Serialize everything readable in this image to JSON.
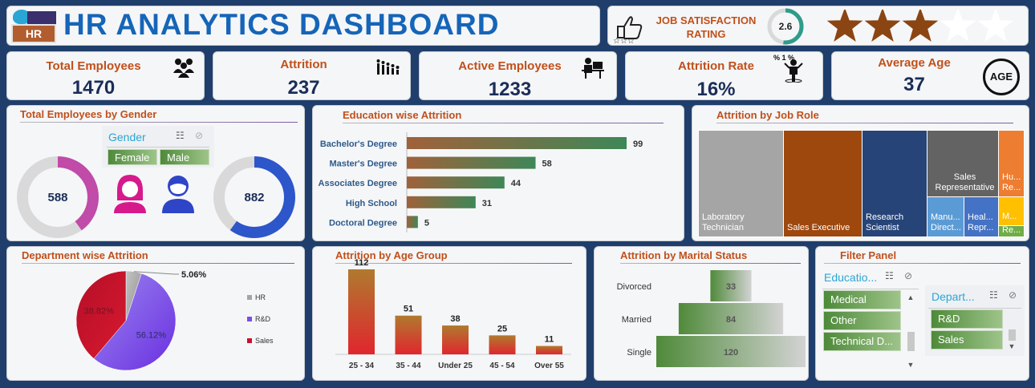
{
  "header": {
    "title": "HR ANALYTICS DASHBOARD",
    "logo_text": "HR"
  },
  "satisfaction": {
    "label_line1": "JOB SATISFACTION",
    "label_line2": "RATING",
    "value": "2.6",
    "stars_filled": 2.6,
    "stars_total": 5
  },
  "kpis": [
    {
      "label": "Total Employees",
      "value": "1470",
      "icon": "people-group-icon"
    },
    {
      "label": "Attrition",
      "value": "237",
      "icon": "people-leaving-icon"
    },
    {
      "label": "Active Employees",
      "value": "1233",
      "icon": "employee-desk-icon"
    },
    {
      "label": "Attrition Rate",
      "value": "16%",
      "icon": "person-percent-icon",
      "icon_text": "% 1 %"
    },
    {
      "label": "Average Age",
      "value": "37",
      "icon": "age-icon",
      "icon_text": "AGE"
    }
  ],
  "gender": {
    "title": "Total Employees by Gender",
    "slicer_title": "Gender",
    "options": [
      "Female",
      "Male"
    ],
    "female_count": "588",
    "male_count": "882",
    "female_share": 0.4,
    "male_share": 0.6
  },
  "education": {
    "title": "Education wise Attrition",
    "categories": [
      "Bachelor's Degree",
      "Master's Degree",
      "Associates Degree",
      "High School",
      "Doctoral Degree"
    ],
    "values": [
      99,
      58,
      44,
      31,
      5
    ]
  },
  "job_role": {
    "title": "Attrition by Job Role",
    "tiles": [
      {
        "label": "Laboratory Technician",
        "color": "#a5a5a5"
      },
      {
        "label": "Sales Executive",
        "color": "#9e480e"
      },
      {
        "label": "Research Scientist",
        "color": "#264478"
      },
      {
        "label": "Sales Representative",
        "color": "#636363"
      },
      {
        "label": "Hu... Re...",
        "color": "#ed7d31"
      },
      {
        "label": "Manu... Direct...",
        "color": "#5b9bd5"
      },
      {
        "label": "Heal... Repr...",
        "color": "#4472c4"
      },
      {
        "label": "M...",
        "color": "#ffc000"
      },
      {
        "label": "Re...",
        "color": "#70ad47"
      }
    ]
  },
  "department": {
    "title": "Department wise Attrition",
    "labels": [
      "HR",
      "R&D",
      "Sales"
    ],
    "values": [
      5.06,
      56.12,
      38.82
    ],
    "value_labels": [
      "5.06%",
      "56.12%",
      "38.82%"
    ],
    "colors": [
      "#a5a5a5",
      "#7b4fe0",
      "#c8102e"
    ]
  },
  "age": {
    "title": "Attrition by Age Group",
    "categories": [
      "25 - 34",
      "35 - 44",
      "Under 25",
      "45 - 54",
      "Over 55"
    ],
    "values": [
      112,
      51,
      38,
      25,
      11
    ]
  },
  "marital": {
    "title": "Attrition by Marital Status",
    "categories": [
      "Divorced",
      "Married",
      "Single"
    ],
    "values": [
      33,
      84,
      120
    ]
  },
  "filter": {
    "title": "Filter Panel",
    "education_title": "Educatio...",
    "education_options": [
      "Medical",
      "Other",
      "Technical D..."
    ],
    "department_title": "Depart...",
    "department_options": [
      "R&D",
      "Sales"
    ]
  }
}
